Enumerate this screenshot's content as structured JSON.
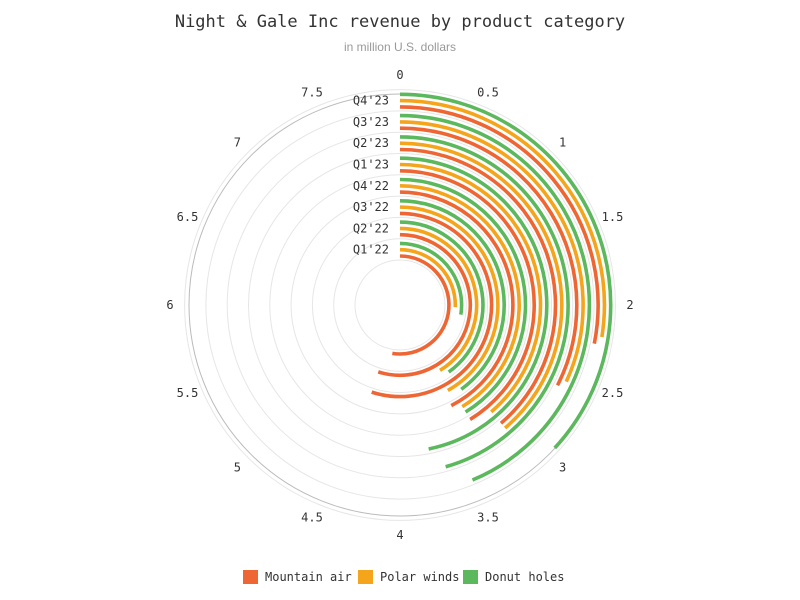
{
  "chart_data": {
    "type": "radial-bar",
    "title": "Night & Gale Inc revenue by product category",
    "subtitle": "in million U.S. dollars",
    "axis_range": [
      0,
      8
    ],
    "angular_ticks": [
      "0",
      "0.5",
      "1",
      "1.5",
      "2",
      "2.5",
      "3",
      "3.5",
      "4",
      "4.5",
      "5",
      "5.5",
      "6",
      "6.5",
      "7",
      "7.5"
    ],
    "categories": [
      "Q1'22",
      "Q2'22",
      "Q3'22",
      "Q4'22",
      "Q1'23",
      "Q2'23",
      "Q3'23",
      "Q4'23"
    ],
    "series": [
      {
        "name": "Mountain air",
        "color": "#ee6633",
        "values": [
          4.2,
          4.4,
          4.4,
          3.4,
          3.3,
          3.1,
          2.6,
          2.25
        ]
      },
      {
        "name": "Polar winds",
        "color": "#f4a51c",
        "values": [
          2.05,
          3.3,
          3.35,
          3.3,
          3.1,
          3.1,
          2.55,
          2.2
        ]
      },
      {
        "name": "Donut holes",
        "color": "#5cb85c",
        "values": [
          2.2,
          3.2,
          3.2,
          3.3,
          3.75,
          3.65,
          3.5,
          2.95
        ]
      }
    ],
    "legend_position": "bottom"
  }
}
